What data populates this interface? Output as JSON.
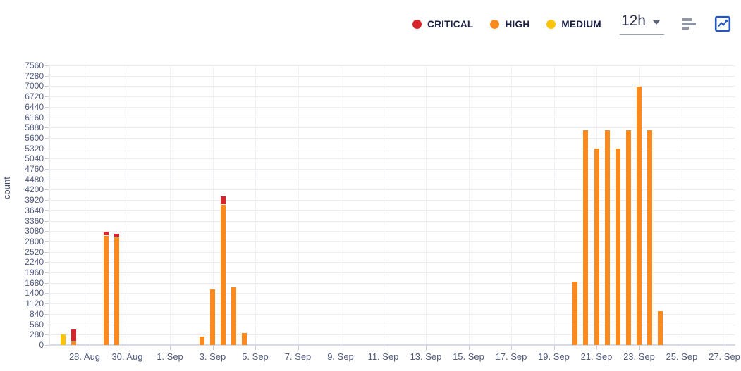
{
  "toolbar": {
    "legend": [
      {
        "label": "CRITICAL",
        "color": "#d6262c"
      },
      {
        "label": "HIGH",
        "color": "#fb8a1e"
      },
      {
        "label": "MEDIUM",
        "color": "#fcc30b"
      }
    ],
    "interval": {
      "value": "12h",
      "caret_icon": "chevron-down-icon"
    },
    "buttons": [
      {
        "icon": "horizontal-bars-icon",
        "color": "#8f96a8"
      },
      {
        "icon": "boxed-line-chart-icon",
        "color": "#2357c4"
      }
    ]
  },
  "chart_data": {
    "type": "bar",
    "stacked": true,
    "title": "",
    "xlabel": "",
    "ylabel": "count",
    "ylim": [
      0,
      7560
    ],
    "grid": true,
    "legend_position": "top-right",
    "bucket_hours": 12,
    "y_ticks": [
      0,
      280,
      560,
      840,
      1120,
      1400,
      1680,
      1960,
      2240,
      2520,
      2800,
      3080,
      3360,
      3640,
      3920,
      4200,
      4480,
      4760,
      5040,
      5320,
      5600,
      5880,
      6160,
      6440,
      6720,
      7000,
      7280,
      7560
    ],
    "x_ticks": [
      {
        "day": 1,
        "label": "28. Aug"
      },
      {
        "day": 3,
        "label": "30. Aug"
      },
      {
        "day": 5,
        "label": "1. Sep"
      },
      {
        "day": 7,
        "label": "3. Sep"
      },
      {
        "day": 9,
        "label": "5. Sep"
      },
      {
        "day": 11,
        "label": "7. Sep"
      },
      {
        "day": 13,
        "label": "9. Sep"
      },
      {
        "day": 15,
        "label": "11. Sep"
      },
      {
        "day": 17,
        "label": "13. Sep"
      },
      {
        "day": 19,
        "label": "15. Sep"
      },
      {
        "day": 21,
        "label": "17. Sep"
      },
      {
        "day": 23,
        "label": "19. Sep"
      },
      {
        "day": 25,
        "label": "21. Sep"
      },
      {
        "day": 27,
        "label": "23. Sep"
      },
      {
        "day": 29,
        "label": "25. Sep"
      },
      {
        "day": 31,
        "label": "27. Sep"
      }
    ],
    "series_colors": {
      "CRITICAL": "#d6262c",
      "HIGH": "#fb8a1e",
      "MEDIUM": "#fcc30b"
    },
    "stack_order": [
      "MEDIUM",
      "HIGH",
      "CRITICAL"
    ],
    "bars": [
      {
        "time": "27. Aug 00:00",
        "day": 0,
        "MEDIUM": 280
      },
      {
        "time": "27. Aug 12:00",
        "day": 0.5,
        "HIGH": 90,
        "CRITICAL": 320
      },
      {
        "time": "29. Aug 00:00",
        "day": 2,
        "HIGH": 2950,
        "CRITICAL": 120
      },
      {
        "time": "29. Aug 12:00",
        "day": 2.5,
        "HIGH": 2920,
        "CRITICAL": 90
      },
      {
        "time": "2. Sep 12:00",
        "day": 6.5,
        "HIGH": 230
      },
      {
        "time": "3. Sep 00:00",
        "day": 7,
        "HIGH": 1510
      },
      {
        "time": "3. Sep 12:00",
        "day": 7.5,
        "HIGH": 3790,
        "CRITICAL": 220
      },
      {
        "time": "4. Sep 00:00",
        "day": 8,
        "HIGH": 1560
      },
      {
        "time": "4. Sep 12:00",
        "day": 8.5,
        "HIGH": 320
      },
      {
        "time": "20. Sep 00:00",
        "day": 24,
        "HIGH": 1710
      },
      {
        "time": "20. Sep 12:00",
        "day": 24.5,
        "HIGH": 5800
      },
      {
        "time": "21. Sep 00:00",
        "day": 25,
        "HIGH": 5320
      },
      {
        "time": "21. Sep 12:00",
        "day": 25.5,
        "HIGH": 5800
      },
      {
        "time": "22. Sep 00:00",
        "day": 26,
        "HIGH": 5320
      },
      {
        "time": "22. Sep 12:00",
        "day": 26.5,
        "HIGH": 5800
      },
      {
        "time": "23. Sep 00:00",
        "day": 27,
        "HIGH": 6980
      },
      {
        "time": "23. Sep 12:00",
        "day": 27.5,
        "HIGH": 5800
      },
      {
        "time": "24. Sep 00:00",
        "day": 28,
        "HIGH": 920
      }
    ]
  }
}
